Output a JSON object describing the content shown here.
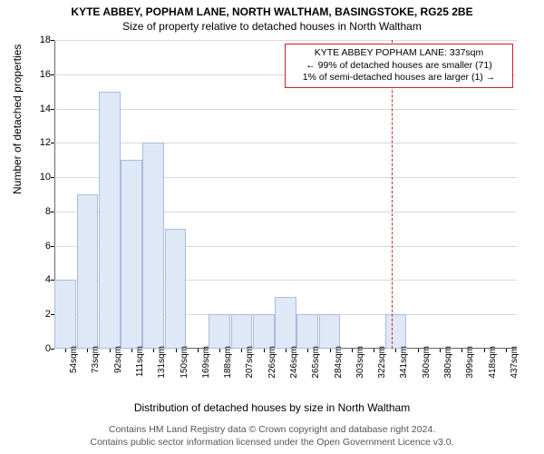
{
  "chart": {
    "type": "histogram",
    "title": "KYTE ABBEY, POPHAM LANE, NORTH WALTHAM, BASINGSTOKE, RG25 2BE",
    "subtitle": "Size of property relative to detached houses in North Waltham",
    "ylabel": "Number of detached properties",
    "xlabel": "Distribution of detached houses by size in North Waltham",
    "ylim": [
      0,
      18
    ],
    "ytick_step": 2,
    "background_color": "#ffffff",
    "grid_color": "#d9d9d9",
    "bar_fill": "#dfe8f6",
    "bar_border": "#a8bcdc",
    "x_categories": [
      "54sqm",
      "73sqm",
      "92sqm",
      "111sqm",
      "131sqm",
      "150sqm",
      "169sqm",
      "188sqm",
      "207sqm",
      "226sqm",
      "246sqm",
      "265sqm",
      "284sqm",
      "303sqm",
      "322sqm",
      "341sqm",
      "360sqm",
      "380sqm",
      "399sqm",
      "418sqm",
      "437sqm"
    ],
    "values": [
      4,
      9,
      15,
      11,
      12,
      7,
      0,
      2,
      2,
      2,
      3,
      2,
      2,
      0,
      0,
      2,
      0,
      0,
      0,
      0,
      0
    ],
    "annotation": {
      "line1": "KYTE ABBEY POPHAM LANE: 337sqm",
      "line2": "← 99% of detached houses are smaller (71)",
      "line3": "1% of semi-detached houses are larger (1) →",
      "border_color": "#d02020",
      "ref_x_index": 14.8
    },
    "footer_line1": "Contains HM Land Registry data © Crown copyright and database right 2024.",
    "footer_line2": "Contains public sector information licensed under the Open Government Licence v3.0."
  }
}
